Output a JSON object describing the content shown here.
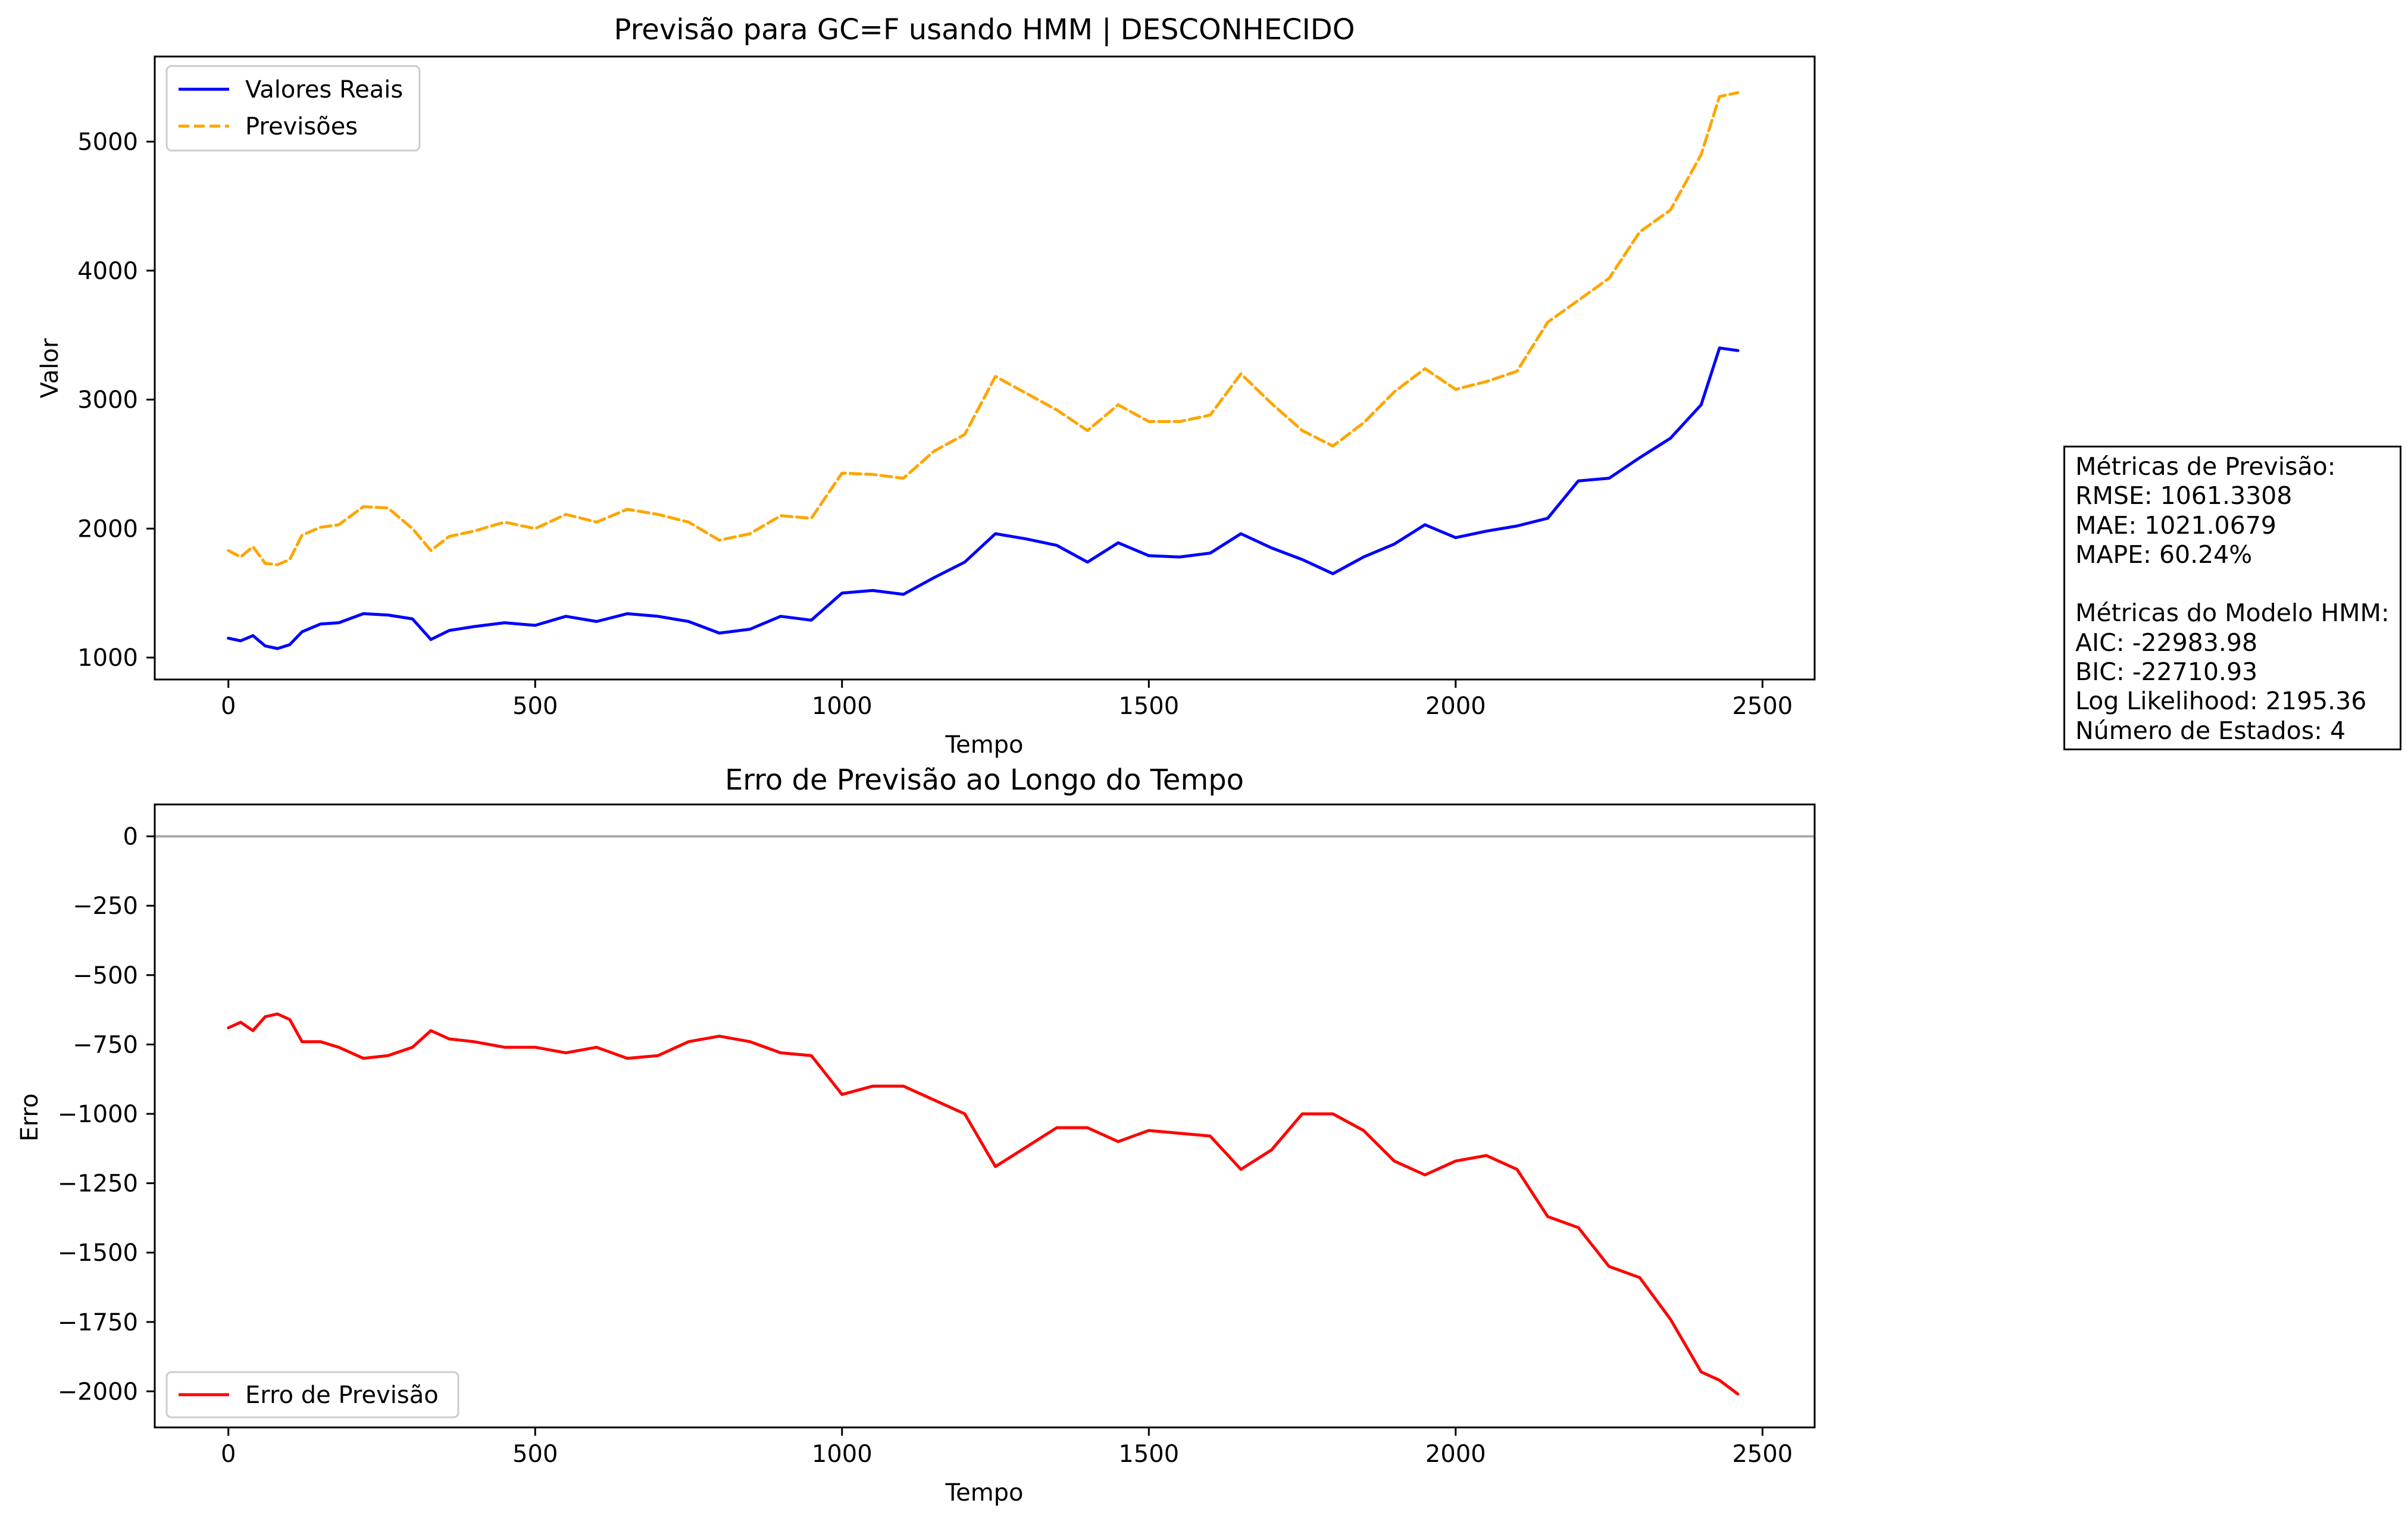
{
  "charts": [
    {
      "title": "Previsão para GC=F usando HMM | DESCONHECIDO",
      "xlabel": "Tempo",
      "ylabel": "Valor",
      "legend": [
        "Valores Reais",
        "Previsões"
      ]
    },
    {
      "title": "Erro de Previsão ao Longo do Tempo",
      "xlabel": "Tempo",
      "ylabel": "Erro",
      "legend": [
        "Erro de Previsão"
      ]
    }
  ],
  "metrics": {
    "lines": [
      "Métricas de Previsão:",
      "RMSE: 1061.3308",
      "MAE: 1021.0679",
      "MAPE: 60.24%",
      "",
      "Métricas do Modelo HMM:",
      "AIC: -22983.98",
      "BIC: -22710.93",
      "Log Likelihood: 2195.36",
      "Número de Estados: 4"
    ]
  },
  "chart_data": [
    {
      "type": "line",
      "title": "Previsão para GC=F usando HMM | DESCONHECIDO",
      "xlabel": "Tempo",
      "ylabel": "Valor",
      "xlim": [
        -120,
        2585
      ],
      "ylim": [
        830,
        5660
      ],
      "xticks": [
        0,
        500,
        1000,
        1500,
        2000,
        2500
      ],
      "yticks": [
        1000,
        2000,
        3000,
        4000,
        5000
      ],
      "grid": false,
      "legend_position": "upper-left",
      "series": [
        {
          "name": "Valores Reais",
          "color": "#0000ff",
          "style": "solid",
          "x": [
            0,
            20,
            40,
            60,
            80,
            100,
            120,
            150,
            180,
            220,
            260,
            300,
            330,
            360,
            400,
            450,
            500,
            550,
            600,
            650,
            700,
            750,
            800,
            850,
            900,
            950,
            1000,
            1050,
            1100,
            1150,
            1200,
            1250,
            1300,
            1350,
            1400,
            1450,
            1500,
            1550,
            1600,
            1650,
            1700,
            1750,
            1800,
            1850,
            1900,
            1950,
            2000,
            2050,
            2100,
            2150,
            2200,
            2250,
            2300,
            2350,
            2400,
            2430,
            2460
          ],
          "y": [
            1150,
            1130,
            1170,
            1090,
            1070,
            1100,
            1200,
            1260,
            1270,
            1340,
            1330,
            1300,
            1140,
            1210,
            1240,
            1270,
            1250,
            1320,
            1280,
            1340,
            1320,
            1280,
            1190,
            1220,
            1320,
            1290,
            1500,
            1520,
            1490,
            1620,
            1740,
            1960,
            1920,
            1870,
            1740,
            1890,
            1790,
            1780,
            1810,
            1960,
            1850,
            1760,
            1650,
            1780,
            1880,
            2030,
            1930,
            1980,
            2020,
            2080,
            2370,
            2390,
            2550,
            2700,
            2960,
            3400,
            3380
          ]
        },
        {
          "name": "Previsões",
          "color": "#ffa500",
          "style": "dashed",
          "x": [
            0,
            20,
            40,
            60,
            80,
            100,
            120,
            150,
            180,
            220,
            260,
            300,
            330,
            360,
            400,
            450,
            500,
            550,
            600,
            650,
            700,
            750,
            800,
            850,
            900,
            950,
            1000,
            1050,
            1100,
            1150,
            1200,
            1250,
            1300,
            1350,
            1400,
            1450,
            1500,
            1550,
            1600,
            1650,
            1700,
            1750,
            1800,
            1850,
            1900,
            1950,
            2000,
            2050,
            2100,
            2150,
            2200,
            2250,
            2300,
            2350,
            2400,
            2430,
            2460
          ],
          "y": [
            1830,
            1780,
            1860,
            1730,
            1720,
            1760,
            1950,
            2010,
            2030,
            2170,
            2160,
            2000,
            1830,
            1940,
            1980,
            2050,
            2000,
            2110,
            2050,
            2150,
            2110,
            2050,
            1910,
            1960,
            2100,
            2080,
            2430,
            2420,
            2390,
            2600,
            2730,
            3180,
            3050,
            2920,
            2760,
            2960,
            2830,
            2830,
            2880,
            3200,
            2970,
            2760,
            2640,
            2820,
            3060,
            3240,
            3080,
            3140,
            3220,
            3600,
            3770,
            3940,
            4300,
            4470,
            4900,
            5350,
            5380
          ]
        }
      ]
    },
    {
      "type": "line",
      "title": "Erro de Previsão ao Longo do Tempo",
      "xlabel": "Tempo",
      "ylabel": "Erro",
      "xlim": [
        -120,
        2585
      ],
      "ylim": [
        -2130,
        115
      ],
      "xticks": [
        0,
        500,
        1000,
        1500,
        2000,
        2500
      ],
      "yticks": [
        0,
        -250,
        -500,
        -750,
        -1000,
        -1250,
        -1500,
        -1750,
        -2000
      ],
      "grid": false,
      "hline": {
        "y": 0,
        "color": "#aaaaaa"
      },
      "legend_position": "lower-left",
      "series": [
        {
          "name": "Erro de Previsão",
          "color": "#ff0000",
          "style": "solid",
          "x": [
            0,
            20,
            40,
            60,
            80,
            100,
            120,
            150,
            180,
            220,
            260,
            300,
            330,
            360,
            400,
            450,
            500,
            550,
            600,
            650,
            700,
            750,
            800,
            850,
            900,
            950,
            1000,
            1050,
            1100,
            1150,
            1200,
            1250,
            1300,
            1350,
            1400,
            1450,
            1500,
            1550,
            1600,
            1650,
            1700,
            1750,
            1800,
            1850,
            1900,
            1950,
            2000,
            2050,
            2100,
            2150,
            2200,
            2250,
            2300,
            2350,
            2400,
            2430,
            2460
          ],
          "y": [
            -690,
            -670,
            -700,
            -650,
            -640,
            -660,
            -740,
            -740,
            -760,
            -800,
            -790,
            -760,
            -700,
            -730,
            -740,
            -760,
            -760,
            -780,
            -760,
            -800,
            -790,
            -740,
            -720,
            -740,
            -780,
            -790,
            -930,
            -900,
            -900,
            -950,
            -1000,
            -1190,
            -1120,
            -1050,
            -1050,
            -1100,
            -1060,
            -1070,
            -1080,
            -1200,
            -1130,
            -1000,
            -1000,
            -1060,
            -1170,
            -1220,
            -1170,
            -1150,
            -1200,
            -1370,
            -1410,
            -1550,
            -1590,
            -1740,
            -1930,
            -1960,
            -2010
          ]
        }
      ]
    }
  ]
}
